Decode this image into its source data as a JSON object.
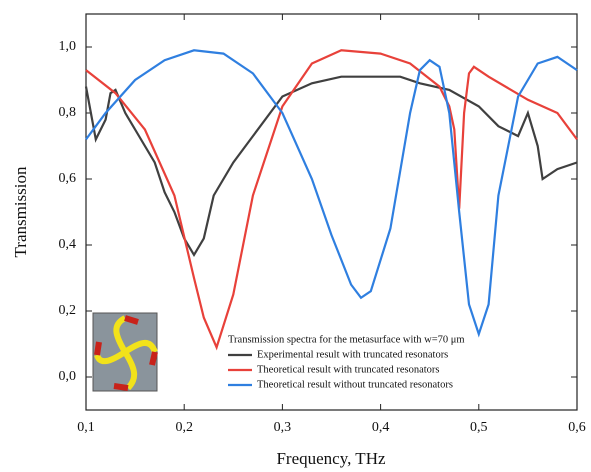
{
  "chart_data": {
    "type": "line",
    "x_label": "Frequency, THz",
    "y_label": "Transmission",
    "legend_title": "Transmission spectra for the metasurface with w=70 μm",
    "legend": "lower right",
    "xlim": [
      0.1,
      0.6
    ],
    "ylim": [
      -0.1,
      1.1
    ],
    "xticks": [
      {
        "value": 0.1,
        "label": "0,1"
      },
      {
        "value": 0.2,
        "label": "0,2"
      },
      {
        "value": 0.3,
        "label": "0,3"
      },
      {
        "value": 0.4,
        "label": "0,4"
      },
      {
        "value": 0.5,
        "label": "0,5"
      },
      {
        "value": 0.6,
        "label": "0,6"
      }
    ],
    "yticks": [
      {
        "value": 0,
        "label": "0,0"
      },
      {
        "value": 0.2,
        "label": "0,2"
      },
      {
        "value": 0.4,
        "label": "0,4"
      },
      {
        "value": 0.6,
        "label": "0,6"
      },
      {
        "value": 0.8,
        "label": "0,8"
      },
      {
        "value": 1.0,
        "label": "1,0"
      }
    ],
    "series": [
      {
        "name": "Experimental result with truncated resonators",
        "color": "#404040",
        "x": [
          0.1,
          0.105,
          0.11,
          0.12,
          0.125,
          0.13,
          0.14,
          0.15,
          0.17,
          0.18,
          0.19,
          0.2,
          0.21,
          0.22,
          0.23,
          0.25,
          0.27,
          0.3,
          0.33,
          0.36,
          0.4,
          0.42,
          0.44,
          0.47,
          0.5,
          0.52,
          0.54,
          0.55,
          0.56,
          0.565,
          0.58,
          0.6
        ],
        "values": [
          0.88,
          0.8,
          0.72,
          0.78,
          0.86,
          0.87,
          0.8,
          0.75,
          0.65,
          0.56,
          0.5,
          0.42,
          0.37,
          0.42,
          0.55,
          0.65,
          0.73,
          0.85,
          0.89,
          0.91,
          0.91,
          0.91,
          0.89,
          0.87,
          0.82,
          0.76,
          0.73,
          0.8,
          0.7,
          0.6,
          0.63,
          0.65
        ]
      },
      {
        "name": "Theoretical result with truncated resonators",
        "color": "#e8413a",
        "x": [
          0.1,
          0.13,
          0.16,
          0.19,
          0.21,
          0.22,
          0.233,
          0.25,
          0.27,
          0.3,
          0.33,
          0.36,
          0.4,
          0.43,
          0.46,
          0.47,
          0.475,
          0.48,
          0.485,
          0.49,
          0.495,
          0.51,
          0.55,
          0.58,
          0.6
        ],
        "values": [
          0.93,
          0.86,
          0.75,
          0.55,
          0.3,
          0.18,
          0.09,
          0.25,
          0.55,
          0.82,
          0.95,
          0.99,
          0.98,
          0.95,
          0.88,
          0.82,
          0.75,
          0.51,
          0.8,
          0.92,
          0.94,
          0.91,
          0.84,
          0.8,
          0.72
        ]
      },
      {
        "name": "Theoretical result without truncated resonators",
        "color": "#2f7fe0",
        "x": [
          0.1,
          0.12,
          0.15,
          0.18,
          0.21,
          0.24,
          0.27,
          0.3,
          0.33,
          0.35,
          0.37,
          0.38,
          0.39,
          0.41,
          0.43,
          0.44,
          0.45,
          0.46,
          0.47,
          0.48,
          0.49,
          0.5,
          0.51,
          0.52,
          0.54,
          0.56,
          0.58,
          0.6
        ],
        "values": [
          0.72,
          0.8,
          0.9,
          0.96,
          0.99,
          0.98,
          0.92,
          0.8,
          0.6,
          0.43,
          0.28,
          0.24,
          0.26,
          0.45,
          0.8,
          0.93,
          0.96,
          0.94,
          0.8,
          0.5,
          0.22,
          0.13,
          0.22,
          0.55,
          0.85,
          0.95,
          0.97,
          0.93
        ]
      }
    ]
  }
}
